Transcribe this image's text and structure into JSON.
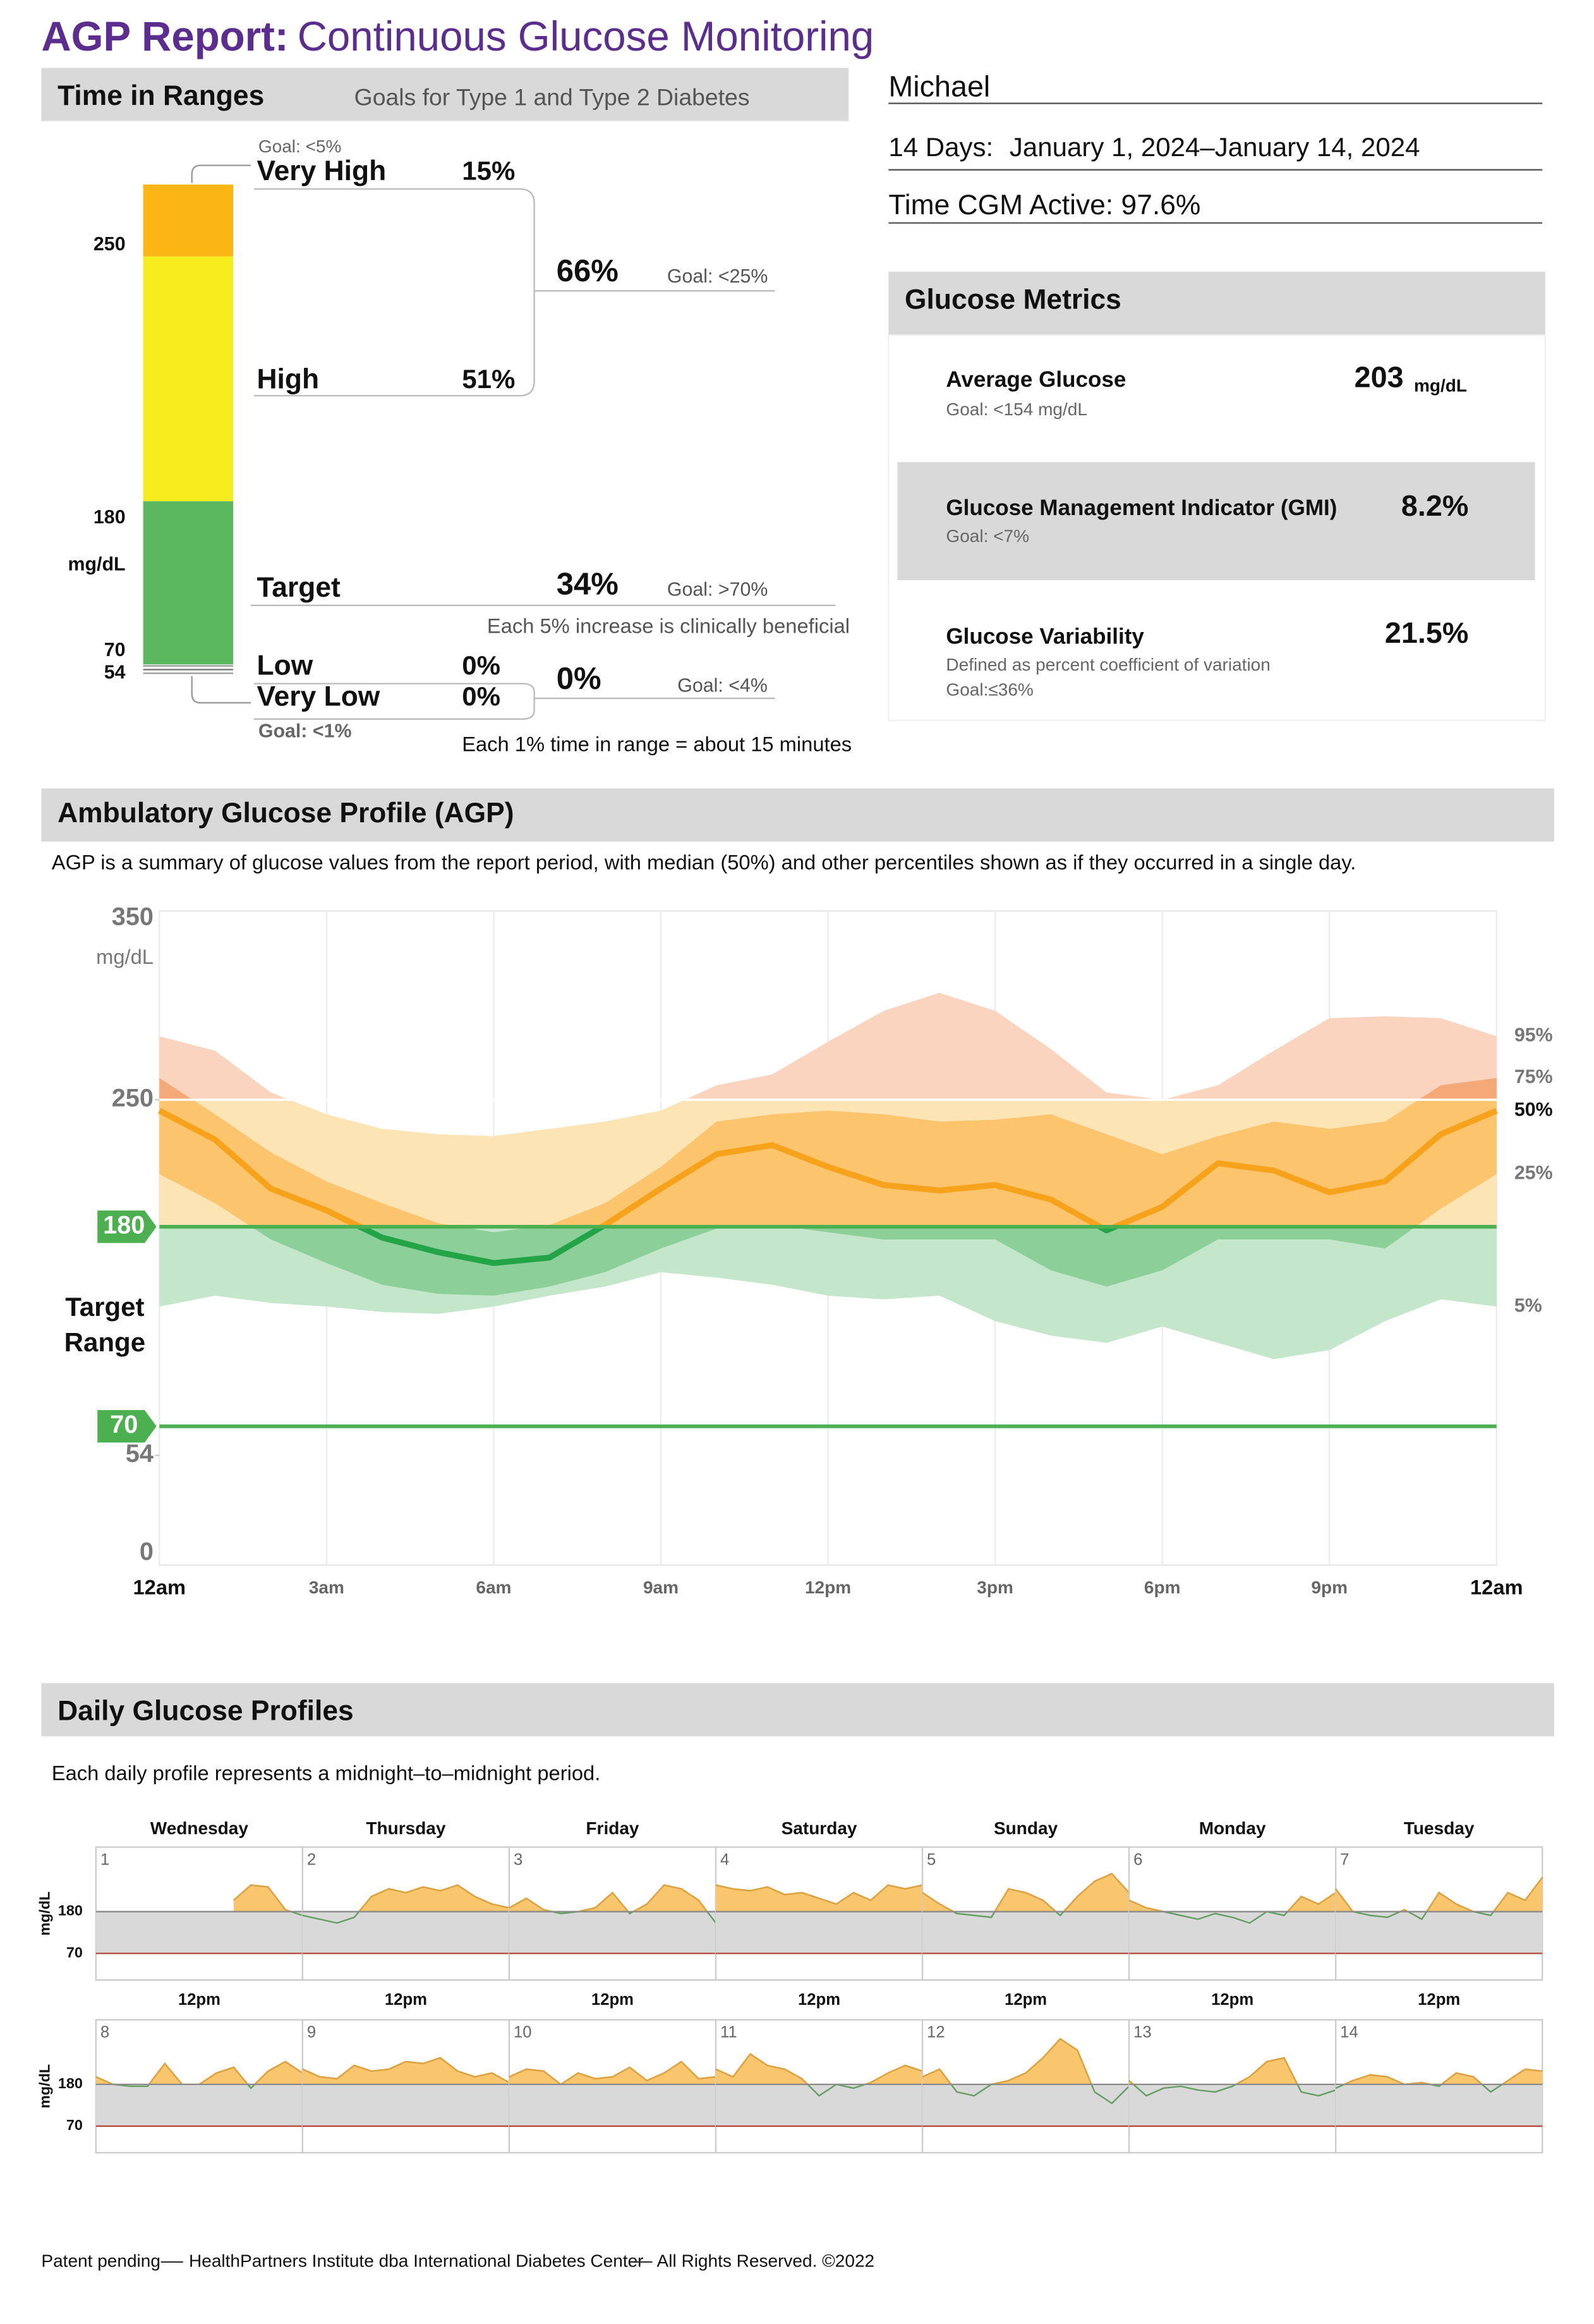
{
  "header": {
    "title_bold": "AGP Report:",
    "title": "Continuous Glucose Monitoring"
  },
  "time_in_ranges": {
    "title": "Time in Ranges",
    "subtitle": "Goals for Type 1 and Type 2 Diabetes",
    "scale_labels": [
      250,
      180,
      70,
      54
    ],
    "unit": "mg/dL",
    "ranges": [
      {
        "name": "Very High",
        "value": 15,
        "value_label": "15%",
        "goal": "Goal: <5%",
        "color": "#fbb616"
      },
      {
        "name": "High",
        "value": 51,
        "value_label": "51%",
        "color": "#f7ec1d"
      },
      {
        "name": "Target",
        "value": 34,
        "color": "#5cb85f"
      },
      {
        "name": "Low",
        "value": 0,
        "value_label": "0%",
        "color": "#e8302a"
      },
      {
        "name": "Very Low",
        "value": 0,
        "value_label": "0%",
        "goal": "Goal: <1%",
        "color": "#a3221c"
      }
    ],
    "combined": [
      {
        "value": "66%",
        "goal": "Goal: <25%"
      },
      {
        "value": "34%",
        "goal": "Goal: >70%",
        "note": "Each 5% increase is clinically beneficial"
      },
      {
        "value": "0%",
        "goal": "Goal: <4%"
      }
    ],
    "footnote": "Each 1% time in range = about 15 minutes"
  },
  "patient": {
    "name": "Michael",
    "period_label": "14 Days:",
    "period": "January 1, 2024–January 14, 2024",
    "cgm_active": "Time CGM Active: 97.6%"
  },
  "glucose_metrics": {
    "title": "Glucose Metrics",
    "items": [
      {
        "name": "Average Glucose",
        "value": "203",
        "unit": "mg/dL",
        "goal": "Goal: <154 mg/dL"
      },
      {
        "name": "Glucose Management Indicator (GMI)",
        "value": "8.2%",
        "goal": "Goal: <7%"
      },
      {
        "name": "Glucose Variability",
        "value": "21.5%",
        "definition": "Defined as percent coefficient of variation",
        "goal": "Goal:≤36%"
      }
    ]
  },
  "chart_data": [
    {
      "type": "band",
      "title": "Ambulatory Glucose Profile (AGP)",
      "subtitle": "AGP is a summary of glucose values from the report period, with median (50%) and other percentiles shown as if they occurred in a single day.",
      "x": [
        0,
        1,
        2,
        3,
        4,
        5,
        6,
        7,
        8,
        9,
        10,
        11,
        12,
        13,
        14,
        15,
        16,
        17,
        18,
        19,
        20,
        21,
        22,
        23,
        24
      ],
      "xlim": [
        0,
        24
      ],
      "xticks": [
        {
          "value": 0,
          "label": "12am"
        },
        {
          "value": 3,
          "label": "3am"
        },
        {
          "value": 6,
          "label": "6am"
        },
        {
          "value": 9,
          "label": "9am"
        },
        {
          "value": 12,
          "label": "12pm"
        },
        {
          "value": 15,
          "label": "3pm"
        },
        {
          "value": 18,
          "label": "6pm"
        },
        {
          "value": 21,
          "label": "9pm"
        },
        {
          "value": 24,
          "label": "12am"
        }
      ],
      "ylim": [
        0,
        350
      ],
      "yticks": [
        350,
        250,
        180,
        70,
        54,
        0
      ],
      "y_unit": "mg/dL",
      "target_range": [
        70,
        180
      ],
      "target_label": [
        "Target",
        "Range"
      ],
      "zone_limits": [
        250,
        180
      ],
      "grid": true,
      "colors": {
        "outer": [
          "#fad4bf",
          "#fde4b5",
          "#c4e6cb"
        ],
        "inner": [
          "#f5a878",
          "#fbc46d",
          "#8dcf99"
        ],
        "median": [
          "#f6a31b",
          "#22a447"
        ],
        "target_line": "#4caf50"
      },
      "series": [
        {
          "name": "95%",
          "values": [
            285,
            277,
            254,
            242,
            234,
            231,
            230,
            234,
            238,
            244,
            258,
            264,
            282,
            299,
            309,
            299,
            278,
            254,
            250,
            258,
            277,
            295,
            296,
            295,
            285
          ]
        },
        {
          "name": "75%",
          "values": [
            262,
            242,
            221,
            205,
            193,
            182,
            177,
            181,
            193,
            213,
            238,
            242,
            244,
            242,
            238,
            239,
            242,
            231,
            220,
            230,
            238,
            234,
            238,
            258,
            262
          ]
        },
        {
          "name": "50%",
          "values": [
            244,
            228,
            201,
            189,
            174,
            166,
            160,
            163,
            181,
            201,
            220,
            225,
            213,
            203,
            200,
            203,
            195,
            178,
            191,
            215,
            211,
            199,
            205,
            231,
            244
          ]
        },
        {
          "name": "25%",
          "values": [
            209,
            193,
            173,
            160,
            148,
            143,
            142,
            147,
            155,
            168,
            179,
            181,
            177,
            173,
            173,
            173,
            156,
            147,
            156,
            173,
            173,
            173,
            168,
            190,
            209
          ]
        },
        {
          "name": "5%",
          "values": [
            136,
            142,
            138,
            136,
            133,
            132,
            136,
            142,
            147,
            155,
            152,
            148,
            142,
            140,
            142,
            128,
            120,
            116,
            125,
            116,
            107,
            112,
            128,
            140,
            136
          ]
        }
      ]
    },
    {
      "type": "line",
      "title": "Daily Glucose Profiles",
      "subtitle": "Each daily profile represents a midnight–to–midnight period.",
      "day_names": [
        "Wednesday",
        "Thursday",
        "Friday",
        "Saturday",
        "Sunday",
        "Monday",
        "Tuesday"
      ],
      "noon_label": "12pm",
      "x": [
        0,
        2,
        4,
        6,
        8,
        10,
        12,
        14,
        16,
        18,
        20,
        22,
        24
      ],
      "xlim": [
        0,
        24
      ],
      "ylim": [
        0,
        350
      ],
      "yticks": [
        180,
        70
      ],
      "y_unit": "mg/dL",
      "colors": {
        "fill": "#f9c66e",
        "line_high": "#e3a13b",
        "line_low": "#5e9e5e",
        "band": "#d9d9d9",
        "high_line": "#8a8a8a",
        "low_line": "#b5483a"
      },
      "series": [
        {
          "name": "1",
          "values": [
            null,
            null,
            null,
            null,
            null,
            null,
            null,
            null,
            210,
            250,
            245,
            185,
            170
          ]
        },
        {
          "name": "2",
          "values": [
            170,
            160,
            150,
            165,
            220,
            240,
            230,
            245,
            235,
            250,
            220,
            200,
            190
          ]
        },
        {
          "name": "3",
          "values": [
            190,
            215,
            185,
            175,
            180,
            190,
            230,
            175,
            200,
            250,
            240,
            210,
            150
          ]
        },
        {
          "name": "4",
          "values": [
            250,
            240,
            235,
            245,
            225,
            230,
            215,
            200,
            230,
            210,
            250,
            240,
            250
          ]
        },
        {
          "name": "5",
          "values": [
            230,
            200,
            175,
            170,
            165,
            240,
            230,
            210,
            170,
            220,
            260,
            280,
            230
          ]
        },
        {
          "name": "6",
          "values": [
            210,
            190,
            180,
            170,
            160,
            175,
            165,
            150,
            180,
            170,
            220,
            200,
            230
          ]
        },
        {
          "name": "7",
          "values": [
            240,
            180,
            170,
            165,
            185,
            160,
            230,
            200,
            180,
            170,
            230,
            210,
            270
          ]
        },
        {
          "name": "8",
          "values": [
            200,
            180,
            175,
            175,
            235,
            180,
            180,
            210,
            225,
            170,
            215,
            240,
            210
          ]
        },
        {
          "name": "9",
          "values": [
            220,
            200,
            195,
            230,
            215,
            220,
            240,
            235,
            250,
            215,
            200,
            210,
            185
          ]
        },
        {
          "name": "10",
          "values": [
            200,
            220,
            215,
            180,
            210,
            195,
            200,
            225,
            190,
            210,
            240,
            195,
            200
          ]
        },
        {
          "name": "11",
          "values": [
            220,
            200,
            260,
            230,
            220,
            195,
            150,
            180,
            170,
            185,
            210,
            230,
            215
          ]
        },
        {
          "name": "12",
          "values": [
            200,
            220,
            160,
            150,
            180,
            190,
            210,
            250,
            300,
            270,
            160,
            130,
            175
          ]
        },
        {
          "name": "13",
          "values": [
            190,
            150,
            170,
            175,
            165,
            160,
            175,
            200,
            240,
            250,
            160,
            150,
            165
          ]
        },
        {
          "name": "14",
          "values": [
            170,
            190,
            205,
            200,
            180,
            185,
            175,
            210,
            200,
            160,
            190,
            220,
            215
          ]
        }
      ]
    }
  ],
  "footer": [
    "Patent pending",
    "HealthPartners Institute dba International Diabetes Center",
    "All Rights Reserved. ©2022"
  ]
}
